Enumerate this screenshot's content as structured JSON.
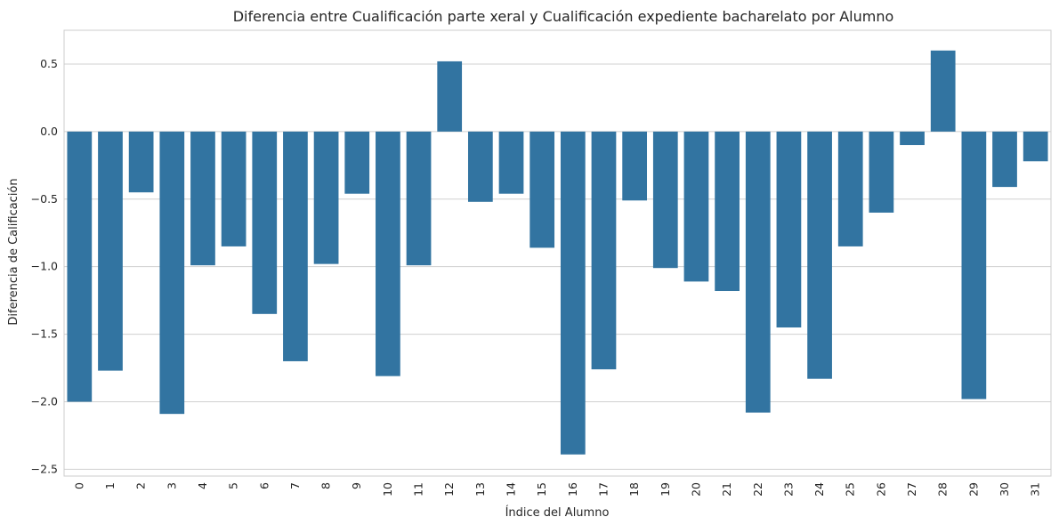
{
  "chart_data": {
    "type": "bar",
    "title": "Diferencia entre Cualificación parte xeral y Cualificación expediente bacharelato por Alumno",
    "xlabel": "Índice del Alumno",
    "ylabel": "Diferencia de Calificación",
    "categories": [
      "0",
      "1",
      "2",
      "3",
      "4",
      "5",
      "6",
      "7",
      "8",
      "9",
      "10",
      "11",
      "12",
      "13",
      "14",
      "15",
      "16",
      "17",
      "18",
      "19",
      "20",
      "21",
      "22",
      "23",
      "24",
      "25",
      "26",
      "27",
      "28",
      "29",
      "30",
      "31"
    ],
    "values": [
      -2.0,
      -1.77,
      -0.45,
      -2.09,
      -0.99,
      -0.85,
      -1.35,
      -1.7,
      -0.98,
      -0.46,
      -1.81,
      -0.99,
      0.52,
      -0.52,
      -0.46,
      -0.86,
      -2.39,
      -1.76,
      -0.51,
      -1.01,
      -1.11,
      -1.18,
      -2.08,
      -1.45,
      -1.83,
      -0.85,
      -0.6,
      -0.1,
      0.6,
      -1.98,
      -0.41,
      -0.22
    ],
    "ylim": [
      -2.55,
      0.75
    ],
    "yticks": [
      0.5,
      0.0,
      -0.5,
      -1.0,
      -1.5,
      -2.0,
      -2.5
    ],
    "ytick_labels": [
      "0.5",
      "0.0",
      "−0.5",
      "−1.0",
      "−1.5",
      "−2.0",
      "−2.5"
    ],
    "grid": true,
    "bar_color": "#3274a1"
  }
}
